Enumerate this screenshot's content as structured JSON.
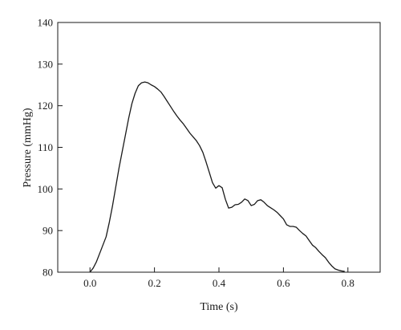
{
  "chart_data": {
    "type": "line",
    "title": "",
    "xlabel": "Time (s)",
    "ylabel": "Pressure (mmHg)",
    "xlim": [
      -0.1,
      0.9
    ],
    "ylim": [
      80,
      140
    ],
    "xticks": [
      "0.0",
      "0.2",
      "0.4",
      "0.6",
      "0.8"
    ],
    "yticks": [
      "80",
      "90",
      "100",
      "110",
      "120",
      "130",
      "140"
    ],
    "grid": false,
    "line_color": "#1a1a1a",
    "series": [
      {
        "x": [
          0.0,
          0.01,
          0.02,
          0.03,
          0.04,
          0.05,
          0.06,
          0.07,
          0.08,
          0.09,
          0.1,
          0.11,
          0.12,
          0.13,
          0.14,
          0.15,
          0.16,
          0.17,
          0.18,
          0.19,
          0.2,
          0.21,
          0.22,
          0.23,
          0.24,
          0.25,
          0.26,
          0.27,
          0.28,
          0.29,
          0.3,
          0.31,
          0.32,
          0.33,
          0.34,
          0.35,
          0.36,
          0.37,
          0.38,
          0.39,
          0.4,
          0.41,
          0.42,
          0.43,
          0.44,
          0.45,
          0.46,
          0.47,
          0.48,
          0.49,
          0.5,
          0.51,
          0.52,
          0.53,
          0.54,
          0.55,
          0.56,
          0.57,
          0.58,
          0.59,
          0.6,
          0.61,
          0.62,
          0.63,
          0.64,
          0.65,
          0.66,
          0.67,
          0.68,
          0.69,
          0.7,
          0.71,
          0.72,
          0.73,
          0.74,
          0.75,
          0.76,
          0.77,
          0.78,
          0.79
        ],
        "values": [
          80.0,
          81.0,
          82.5,
          84.5,
          86.5,
          88.5,
          92.0,
          96.0,
          100.5,
          105.0,
          109.0,
          113.0,
          117.0,
          120.5,
          123.0,
          124.8,
          125.5,
          125.7,
          125.5,
          125.0,
          124.6,
          124.0,
          123.3,
          122.2,
          121.0,
          119.8,
          118.6,
          117.5,
          116.5,
          115.6,
          114.5,
          113.4,
          112.5,
          111.6,
          110.4,
          108.8,
          106.5,
          104.0,
          101.5,
          100.2,
          100.8,
          100.3,
          97.5,
          95.4,
          95.6,
          96.2,
          96.3,
          96.8,
          97.6,
          97.2,
          96.0,
          96.3,
          97.2,
          97.4,
          96.8,
          96.0,
          95.5,
          95.0,
          94.4,
          93.6,
          92.8,
          91.4,
          91.0,
          91.0,
          90.8,
          90.0,
          89.3,
          88.7,
          87.6,
          86.5,
          85.9,
          85.0,
          84.2,
          83.5,
          82.4,
          81.5,
          80.8,
          80.5,
          80.3,
          80.2
        ]
      }
    ]
  }
}
